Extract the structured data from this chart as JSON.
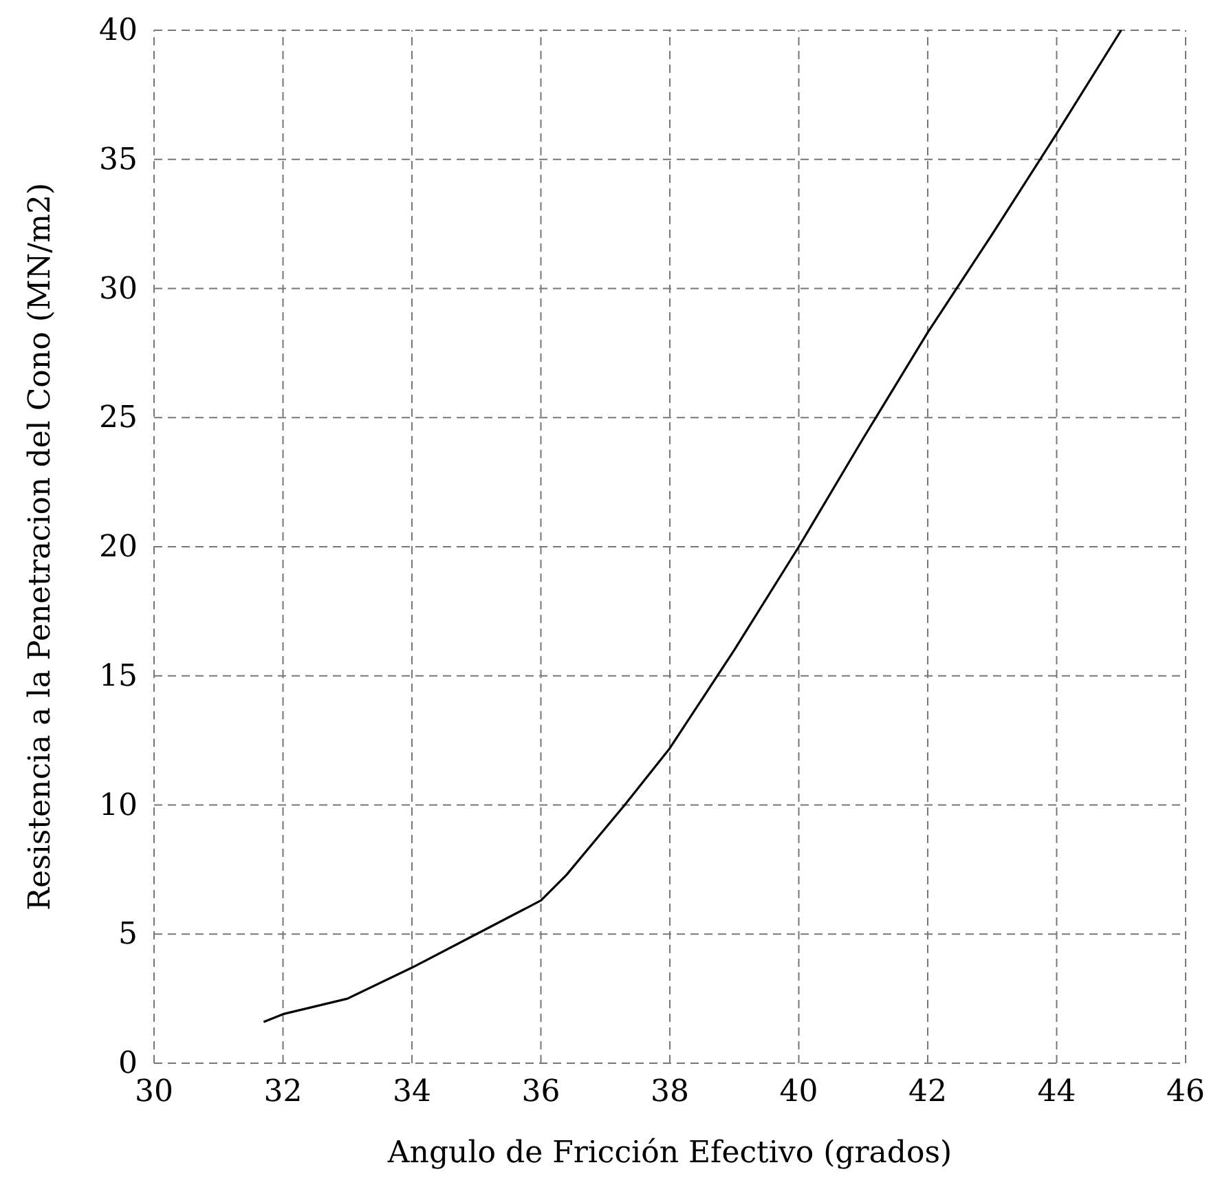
{
  "chart_data": {
    "type": "line",
    "xlabel": "Angulo de Fricción Efectivo (grados)",
    "ylabel": "Resistencia a la Penetracion del Cono (MN/m2)",
    "x": [
      31.7,
      32,
      33,
      34,
      35,
      36,
      36.4,
      37.3,
      38,
      39,
      40,
      41,
      42,
      43,
      44,
      45
    ],
    "series": [
      {
        "color": "#000000",
        "values": [
          1.6,
          1.9,
          2.5,
          3.7,
          5.0,
          6.3,
          7.3,
          10,
          12.2,
          16,
          20,
          24.2,
          28.3,
          32.1,
          36,
          40
        ]
      }
    ],
    "xlim": [
      30,
      46
    ],
    "xticks": [
      30,
      32,
      34,
      36,
      38,
      40,
      42,
      44,
      46
    ],
    "ylim": [
      0,
      40
    ],
    "yticks": [
      0,
      5,
      10,
      15,
      20,
      25,
      30,
      35,
      40
    ],
    "grid": true,
    "marker": "none",
    "line_style": "solid"
  }
}
